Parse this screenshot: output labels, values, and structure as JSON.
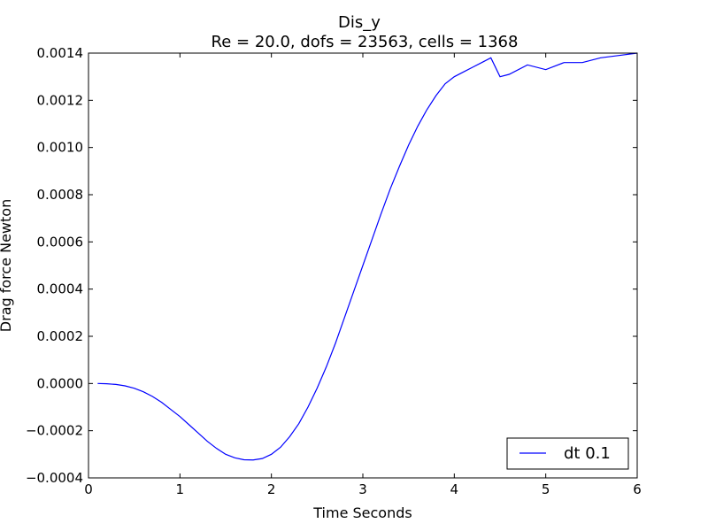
{
  "chart_data": {
    "type": "line",
    "title": "Dis_y",
    "subtitle": "Re = 20.0, dofs = 23563, cells = 1368",
    "xlabel": "Time Seconds",
    "ylabel": "Drag force Newton",
    "xlim": [
      0,
      6
    ],
    "ylim": [
      -0.0004,
      0.0014
    ],
    "xticks": [
      0,
      1,
      2,
      3,
      4,
      5,
      6
    ],
    "xtick_labels": [
      "0",
      "1",
      "2",
      "3",
      "4",
      "5",
      "6"
    ],
    "yticks": [
      -0.0004,
      -0.0002,
      0.0,
      0.0002,
      0.0004,
      0.0006,
      0.0008,
      0.001,
      0.0012,
      0.0014
    ],
    "ytick_labels": [
      "−0.0004",
      "−0.0002",
      "0.0000",
      "0.0002",
      "0.0004",
      "0.0006",
      "0.0008",
      "0.0010",
      "0.0012",
      "0.0014"
    ],
    "grid": false,
    "legend_position": "lower-right",
    "series": [
      {
        "name": "dt  0.1",
        "color": "#0000ff",
        "x": [
          0.1,
          0.2,
          0.3,
          0.4,
          0.5,
          0.6,
          0.7,
          0.8,
          0.9,
          1.0,
          1.1,
          1.2,
          1.3,
          1.4,
          1.5,
          1.6,
          1.7,
          1.8,
          1.9,
          2.0,
          2.1,
          2.2,
          2.3,
          2.4,
          2.5,
          2.6,
          2.7,
          2.8,
          2.9,
          3.0,
          3.1,
          3.2,
          3.3,
          3.4,
          3.5,
          3.6,
          3.7,
          3.8,
          3.9,
          4.0,
          4.1,
          4.2,
          4.3,
          4.4,
          4.5,
          4.6,
          4.8,
          5.0,
          5.2,
          5.4,
          5.6,
          5.8,
          6.0
        ],
        "y": [
          0.0,
          -1e-06,
          -4e-06,
          -1e-05,
          -2e-05,
          -3.5e-05,
          -5.5e-05,
          -8e-05,
          -0.00011,
          -0.00014,
          -0.000175,
          -0.00021,
          -0.000245,
          -0.000275,
          -0.0003,
          -0.000315,
          -0.000323,
          -0.000324,
          -0.000318,
          -0.0003,
          -0.00027,
          -0.000225,
          -0.00017,
          -0.0001,
          -2e-05,
          7e-05,
          0.00017,
          0.00028,
          0.00039,
          0.0005,
          0.00061,
          0.00072,
          0.000825,
          0.00092,
          0.00101,
          0.00109,
          0.00116,
          0.00122,
          0.00127,
          0.0013,
          0.00132,
          0.00134,
          0.00136,
          0.00138,
          0.0013,
          0.00131,
          0.00135,
          0.00133,
          0.00136,
          0.00136,
          0.00138,
          0.00139,
          0.0014
        ]
      }
    ]
  }
}
